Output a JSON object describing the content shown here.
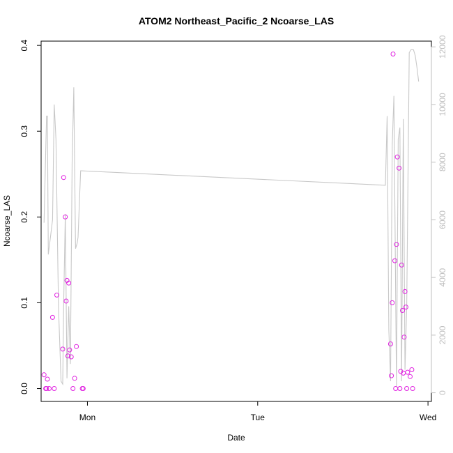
{
  "chart_data": {
    "type": "scatter",
    "title": "ATOM2 Northeast_Pacific_2 Ncoarse_LAS",
    "xlabel": "Date",
    "ylabel": "Ncoarse_LAS",
    "x_ticks": [
      "Mon",
      "Tue",
      "Wed"
    ],
    "x_range_days": [
      -0.272,
      2.02
    ],
    "ylim": [
      -0.015,
      0.405
    ],
    "y_ticks": [
      "0.0",
      "0.1",
      "0.2",
      "0.3",
      "0.4"
    ],
    "y_tick_values": [
      0.0,
      0.1,
      0.2,
      0.3,
      0.4
    ],
    "y2lim": [
      -300,
      12200
    ],
    "y2_ticks": [
      "0",
      "2000",
      "4000",
      "6000",
      "8000",
      "10000",
      "12000"
    ],
    "y2_tick_values": [
      0,
      2000,
      4000,
      6000,
      8000,
      10000,
      12000
    ],
    "grid": false,
    "colors": {
      "points": "#e020e0",
      "line": "#c8c8c8",
      "axis": "#000000",
      "right_axis": "#bfbfbf"
    },
    "series": [
      {
        "role": "points",
        "axis": "left",
        "x": [
          -0.255,
          -0.245,
          -0.24,
          -0.235,
          -0.225,
          -0.205,
          -0.195,
          -0.18,
          -0.145,
          -0.14,
          -0.13,
          -0.125,
          -0.12,
          -0.115,
          -0.11,
          -0.105,
          -0.095,
          -0.085,
          -0.075,
          -0.065,
          -0.03,
          -0.025,
          1.78,
          1.785,
          1.79,
          1.795,
          1.805,
          1.81,
          1.815,
          1.82,
          1.83,
          1.835,
          1.84,
          1.845,
          1.85,
          1.855,
          1.86,
          1.865,
          1.87,
          1.875,
          1.88,
          1.895,
          1.905,
          1.91
        ],
        "y": [
          0.016,
          0.0,
          0.0,
          0.011,
          0.0,
          0.083,
          0.0,
          0.109,
          0.046,
          0.246,
          0.2,
          0.102,
          0.126,
          0.038,
          0.123,
          0.045,
          0.037,
          0.0,
          0.012,
          0.049,
          0.0,
          0.0,
          0.052,
          0.015,
          0.1,
          0.39,
          0.149,
          0.0,
          0.168,
          0.27,
          0.257,
          0.0,
          0.02,
          0.144,
          0.091,
          0.018,
          0.06,
          0.113,
          0.095,
          0.0,
          0.019,
          0.014,
          0.022,
          0.0
        ]
      },
      {
        "role": "line",
        "axis": "right",
        "x": [
          -0.255,
          -0.24,
          -0.235,
          -0.23,
          -0.215,
          -0.205,
          -0.195,
          -0.185,
          -0.17,
          -0.155,
          -0.145,
          -0.14,
          -0.13,
          -0.12,
          -0.11,
          -0.1,
          -0.09,
          -0.08,
          -0.07,
          -0.06,
          -0.055,
          -0.04,
          -0.035,
          1.75,
          1.76,
          1.77,
          1.78,
          1.79,
          1.8,
          1.815,
          1.825,
          1.835,
          1.845,
          1.855,
          1.865,
          1.875,
          1.89,
          1.9,
          1.915,
          1.925,
          1.935,
          1.945
        ],
        "y": [
          5900,
          9600,
          9600,
          4800,
          5500,
          6000,
          10000,
          8800,
          3000,
          400,
          300,
          3000,
          6200,
          500,
          3000,
          1000,
          8000,
          10600,
          5000,
          5200,
          5400,
          7700,
          7700,
          7200,
          9600,
          2200,
          400,
          8600,
          10300,
          200,
          8800,
          9200,
          400,
          9500,
          800,
          3000,
          11800,
          11900,
          11900,
          11700,
          11300,
          10800
        ]
      }
    ]
  }
}
